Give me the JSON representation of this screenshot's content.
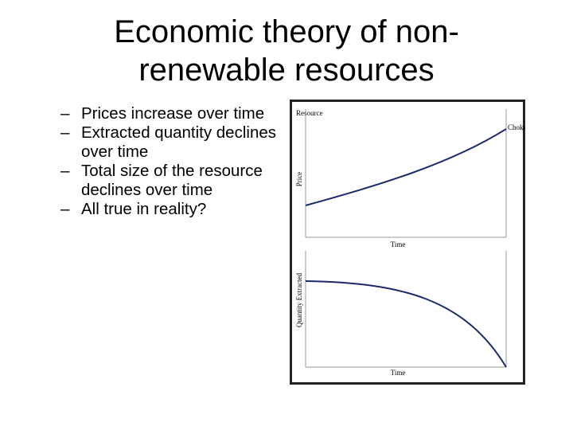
{
  "slide": {
    "title_line1": "Economic theory of non-",
    "title_line2": "renewable resources",
    "bullet_marker": "–",
    "bullets": [
      "Prices increase over time",
      "Extracted quantity declines over time",
      "Total size of the resource declines over time",
      "All true in reality?"
    ]
  },
  "figure": {
    "corner_label": "Resource",
    "top_panel": {
      "ylabel": "Price",
      "xlabel": "Time",
      "curve_label": "Choke Price"
    },
    "bottom_panel": {
      "ylabel": "Quantity Extracted",
      "xlabel": "Time"
    },
    "colors": {
      "curve": "#1a2a6c",
      "axis": "#999999",
      "frame": "#222222"
    }
  }
}
